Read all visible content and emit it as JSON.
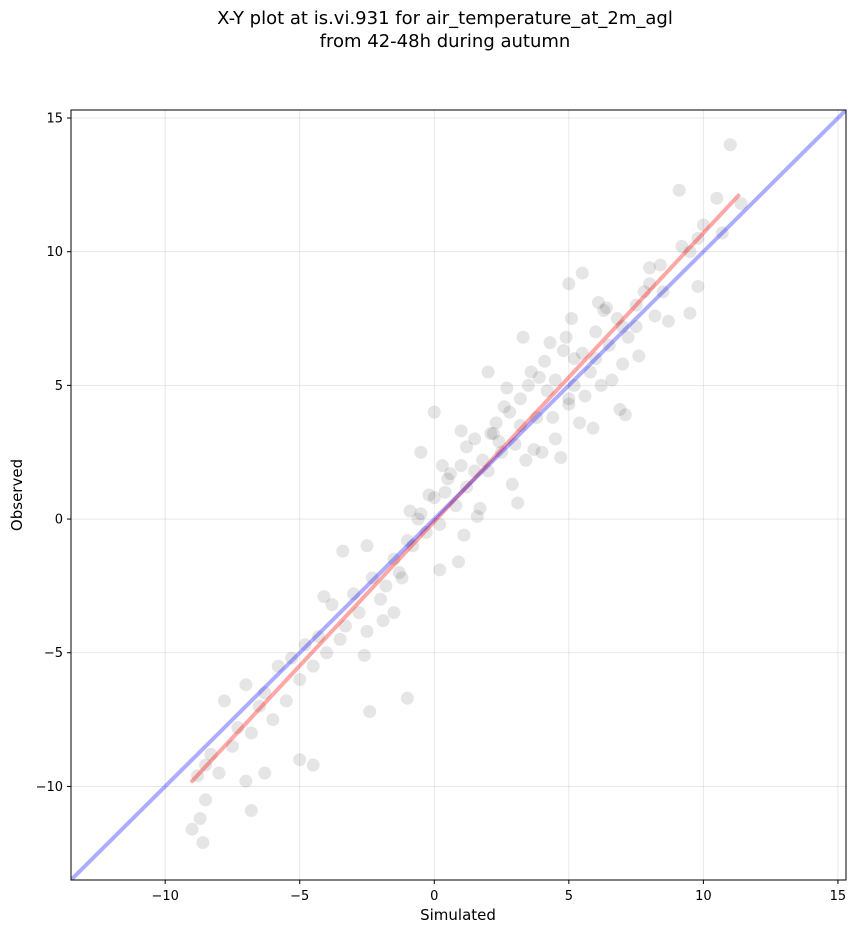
{
  "chart_data": {
    "type": "scatter",
    "title": "X-Y plot at is.vi.931 for air_temperature_at_2m_agl",
    "subtitle": "from 42-48h during autumn",
    "xlabel": "Simulated",
    "ylabel": "Observed",
    "xlim": [
      -13.5,
      15.3
    ],
    "ylim": [
      -13.5,
      15.3
    ],
    "xticks": [
      -10,
      -5,
      0,
      5,
      10,
      15
    ],
    "yticks": [
      -10,
      -5,
      0,
      5,
      10,
      15
    ],
    "xtick_labels": [
      "−10",
      "−5",
      "0",
      "5",
      "10",
      "15"
    ],
    "ytick_labels": [
      "−10",
      "−5",
      "0",
      "5",
      "10",
      "15"
    ],
    "grid": true,
    "colors": {
      "points": "#000000",
      "regression": "#ff0000",
      "identity": "#0000ff"
    },
    "identity_line": {
      "x": [
        -13.5,
        15.3
      ],
      "y": [
        -13.5,
        15.3
      ]
    },
    "regression_line": {
      "x": [
        -9.0,
        11.3
      ],
      "y": [
        -9.8,
        12.1
      ]
    },
    "points": {
      "x": [
        10.7,
        11.0,
        9.1,
        11.4,
        9.8,
        10.0,
        10.5,
        9.5,
        8.4,
        8.0,
        7.5,
        8.2,
        7.8,
        6.8,
        7.2,
        7.0,
        6.5,
        6.0,
        6.3,
        5.8,
        5.5,
        5.2,
        4.9,
        5.0,
        4.5,
        4.2,
        3.8,
        3.5,
        3.2,
        3.0,
        2.8,
        2.5,
        2.2,
        2.0,
        1.8,
        1.5,
        1.2,
        1.0,
        0.8,
        0.5,
        0.2,
        0.0,
        -0.3,
        -0.5,
        -0.8,
        -1.0,
        -1.3,
        -1.5,
        -1.8,
        -2.0,
        -2.3,
        -2.5,
        -2.8,
        -3.0,
        -3.3,
        -3.5,
        -3.8,
        -4.0,
        -4.3,
        -4.5,
        -4.8,
        -5.0,
        -5.3,
        -5.5,
        -5.8,
        -6.0,
        -6.3,
        -6.5,
        -6.8,
        -7.0,
        -7.3,
        -7.5,
        -7.8,
        -8.0,
        -8.3,
        -8.5,
        -8.8,
        -9.0,
        -8.6,
        -8.7,
        -8.5,
        -7.0,
        -6.8,
        -6.3,
        -5.0,
        -4.5,
        -2.4,
        -1.0,
        5.0,
        5.5,
        6.2,
        7.5,
        8.5,
        9.5,
        9.8,
        4.5,
        3.2,
        2.0,
        1.0,
        0.0,
        -0.5,
        -1.5,
        -2.5,
        0.3,
        1.5,
        2.6,
        3.6,
        4.4,
        5.2,
        6.6,
        7.1,
        3.3,
        2.1,
        1.2,
        0.4,
        -0.6,
        -1.2,
        4.0,
        5.0,
        6.0,
        7.0,
        8.0,
        2.9,
        3.9,
        4.8,
        5.6,
        1.7,
        0.9,
        -0.2,
        -1.9,
        -2.6,
        -3.4,
        -4.1,
        2.4,
        3.4,
        4.3,
        5.4,
        6.4,
        7.6,
        8.7,
        9.2,
        1.1,
        0.6,
        -0.9,
        2.7,
        3.1,
        4.7,
        5.9,
        6.9,
        0.2,
        1.6,
        2.3,
        3.7,
        4.1,
        5.1,
        6.1
      ],
      "y": [
        10.7,
        14.0,
        12.3,
        11.8,
        10.5,
        11.0,
        12.0,
        10.0,
        9.5,
        8.8,
        8.0,
        7.6,
        8.5,
        7.5,
        6.8,
        7.2,
        6.5,
        6.0,
        7.8,
        5.5,
        6.2,
        5.0,
        6.8,
        4.5,
        5.2,
        4.8,
        3.8,
        5.0,
        3.5,
        2.8,
        4.0,
        2.5,
        3.2,
        1.8,
        2.2,
        3.0,
        1.2,
        2.0,
        0.5,
        1.5,
        -0.2,
        0.8,
        -0.5,
        0.2,
        -1.0,
        -0.8,
        -2.0,
        -1.5,
        -2.5,
        -3.0,
        -2.2,
        -4.2,
        -3.5,
        -2.8,
        -4.0,
        -4.5,
        -3.2,
        -5.0,
        -4.4,
        -5.5,
        -4.7,
        -6.0,
        -5.2,
        -6.8,
        -5.5,
        -7.5,
        -6.5,
        -7.0,
        -8.0,
        -6.2,
        -7.8,
        -8.5,
        -6.8,
        -9.5,
        -8.8,
        -10.5,
        -9.6,
        -11.6,
        -12.1,
        -11.2,
        -9.2,
        -9.8,
        -10.9,
        -9.5,
        -9.0,
        -9.2,
        -7.2,
        -6.7,
        8.8,
        9.2,
        5.0,
        7.2,
        8.5,
        7.7,
        8.7,
        3.0,
        4.5,
        5.5,
        3.3,
        4.0,
        2.5,
        -3.5,
        -1.0,
        2.0,
        1.8,
        4.2,
        5.5,
        3.8,
        6.0,
        5.2,
        3.9,
        6.8,
        3.2,
        2.7,
        1.0,
        0.0,
        -2.2,
        2.5,
        4.3,
        7.0,
        5.8,
        9.4,
        1.3,
        5.3,
        6.3,
        4.6,
        0.4,
        -1.6,
        0.9,
        -3.8,
        -5.1,
        -1.2,
        -2.9,
        2.9,
        2.2,
        6.6,
        3.6,
        7.9,
        6.1,
        7.4,
        10.2,
        -0.6,
        1.7,
        0.3,
        4.9,
        0.6,
        2.3,
        3.4,
        4.1,
        -1.9,
        0.1,
        3.6,
        2.6,
        5.9,
        7.5,
        8.1
      ]
    }
  }
}
